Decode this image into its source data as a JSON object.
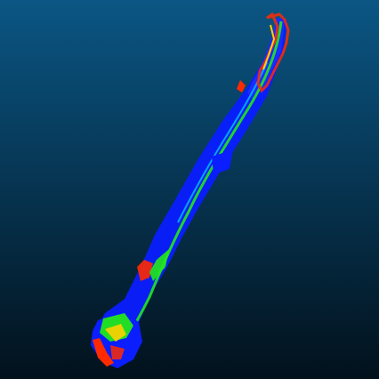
{
  "viewer": {
    "background_top": "#0b5684",
    "background_bottom": "#02111c"
  },
  "colormap": {
    "low": "#0a1eff",
    "mid_low": "#00c8ff",
    "mid": "#23e81a",
    "mid_high": "#ffd000",
    "high": "#ff2a00"
  }
}
